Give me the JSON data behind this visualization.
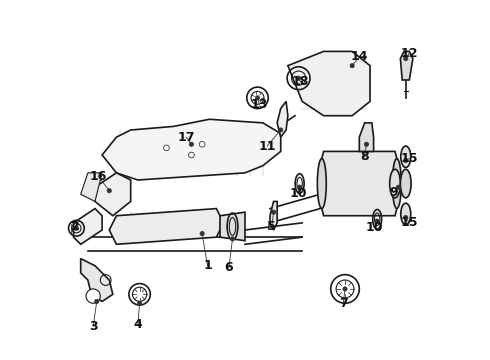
{
  "title": "",
  "bg_color": "#ffffff",
  "line_color": "#1a1a1a",
  "figsize": [
    4.9,
    3.6
  ],
  "dpi": 100,
  "font_size": 9
}
